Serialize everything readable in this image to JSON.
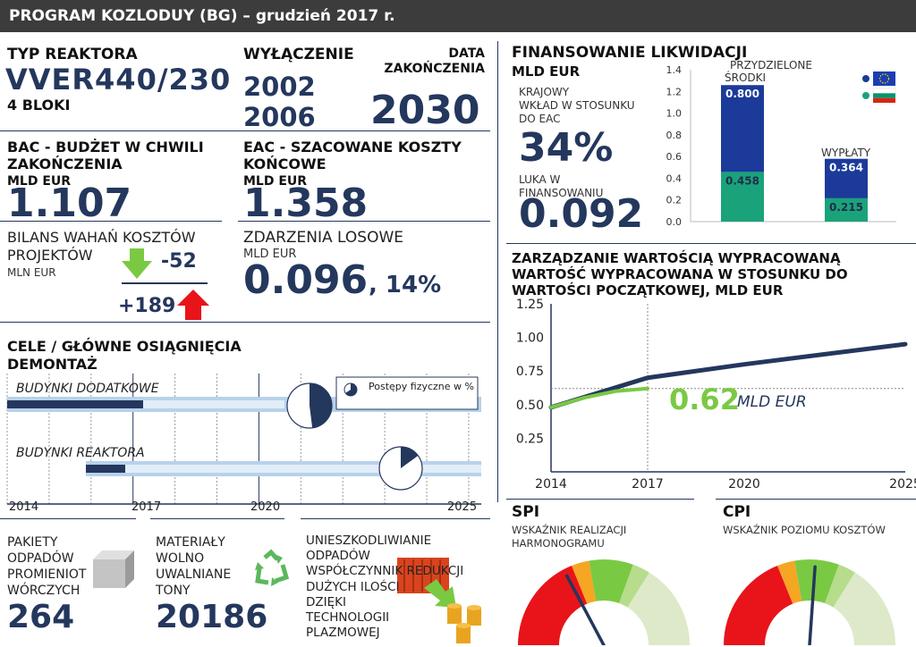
{
  "header": {
    "title": "PROGRAM KOZLODUY (BG) – grudzień 2017 r."
  },
  "reactor": {
    "label": "TYP REAKTORA",
    "type": "VVER440/230",
    "units": "4 BLOKI"
  },
  "shutdown": {
    "label": "WYŁĄCZENIE",
    "year1": "2002",
    "year2": "2006",
    "end_label_1": "DATA",
    "end_label_2": "ZAKOŃCZENIA",
    "end_year": "2030"
  },
  "bac": {
    "label_1": "BAC - BUDŻET W CHWILI",
    "label_2": "ZAKOŃCZENIA",
    "unit": "MLD EUR",
    "value": "1.107"
  },
  "eac": {
    "label_1": "EAC - SZACOWANE KOSZTY",
    "label_2": "KOŃCOWE",
    "unit": "MLD EUR",
    "value": "1.358"
  },
  "variance": {
    "label_1": "BILANS WAHAŃ KOSZTÓW",
    "label_2": "PROJEKTÓW",
    "unit": "MLN EUR",
    "down": "-52",
    "up": "+189"
  },
  "contingency": {
    "label": "ZDARZENIA LOSOWE",
    "unit": "MLD EUR",
    "value": "0.096",
    "percent": ", 14%"
  },
  "funding": {
    "title": "FINANSOWANIE LIKWIDACJI",
    "unit": "MLD EUR",
    "national_1": "KRAJOWY",
    "national_2": "WKŁAD W STOSUNKU",
    "national_3": "DO EAC",
    "national_value": "34%",
    "gap_1": "LUKA W",
    "gap_2": "FINANSOWANIU",
    "gap_value": "0.092"
  },
  "funding_chart": {
    "chart_data": {
      "type": "bar",
      "categories": [
        "PRZYDZIELONE ŚRODKI",
        "WYPŁATY"
      ],
      "series": [
        {
          "values": [
            0.458,
            0.215
          ],
          "color": "#1aa37a"
        },
        {
          "values": [
            0.8,
            0.364
          ],
          "color": "#1b3a9a"
        }
      ],
      "ylim": [
        0,
        1.4
      ],
      "yticks": [
        "0.0",
        "0.2",
        "0.4",
        "0.6",
        "0.8",
        "1.0",
        "1.2",
        "1.4"
      ],
      "labels": {
        "allocated_1": "PRZYDZIELONE",
        "allocated_2": "ŚRODKI",
        "paid": "WYPŁATY"
      },
      "data_labels": [
        "0.800",
        "0.458",
        "0.364",
        "0.215"
      ],
      "legend": [
        "eu-flag-icon",
        "bg-flag-icon"
      ]
    }
  },
  "ev": {
    "title_1": "ZARZĄDZANIE WARTOŚCIĄ WYPRACOWANĄ",
    "title_2": "WARTOŚĆ WYPRACOWANA W STOSUNKU DO",
    "title_3": "WARTOŚCI POCZĄTKOWEJ, MLD EUR",
    "value": "0.62",
    "value_unit": "MLD EUR",
    "chart_data": {
      "type": "line",
      "ylim": [
        0,
        1.25
      ],
      "yticks": [
        "1.25",
        "1.00",
        "0.75",
        "0.50",
        "0.25"
      ],
      "xticks": [
        "2014",
        "2017",
        "2020",
        "2025"
      ],
      "series": [
        {
          "color": "#24375d",
          "points": [
            [
              2014,
              0.48
            ],
            [
              2017,
              0.7
            ],
            [
              2020,
              0.8
            ],
            [
              2025,
              0.95
            ]
          ]
        },
        {
          "color": "#7ac943",
          "points": [
            [
              2014,
              0.48
            ],
            [
              2015,
              0.55
            ],
            [
              2016,
              0.6
            ],
            [
              2017,
              0.62
            ]
          ]
        }
      ]
    }
  },
  "goals": {
    "title": "CELE / GŁÓWNE OSIĄGNIĘCIA",
    "subtitle": "DEMONTAŻ",
    "row1": "BUDYNKI DODATKOWE",
    "row2": "BUDYNKI REAKTORA",
    "legend": "Postępy fizyczne w %",
    "xticks": [
      "2014",
      "2017",
      "2020",
      "2025"
    ],
    "progress": {
      "aux_buildings": 0.48,
      "reactor_buildings": 0.15
    }
  },
  "waste": {
    "label_1": "PAKIETY",
    "label_2": "ODPADÓW",
    "label_3": "PROMIENIOT",
    "label_4": "WÓRCZYCH",
    "value": "264"
  },
  "materials": {
    "label_1": "MATERIAŁY",
    "label_2": "WOLNO",
    "label_3": "UWALNIANE",
    "label_4": "TONY",
    "value": "20186"
  },
  "plasma": {
    "line1": "UNIESZKODLIWIANIE",
    "line2": "ODPADÓW",
    "line3": "WSPÓŁCZYNNIK REDUKCJI",
    "line4": "DUŻYCH ILOŚCI",
    "line5": "DZIĘKI",
    "line6": "TECHNOLOGII",
    "line7": "PLAZMOWEJ"
  },
  "spi": {
    "title": "SPI",
    "sub_1": "WSKAŹNIK REALIZACJI",
    "sub_2": "HARMONOGRAMU"
  },
  "cpi": {
    "title": "CPI",
    "sub_1": "WSKAŹNIK POZIOMU KOSZTÓW"
  }
}
